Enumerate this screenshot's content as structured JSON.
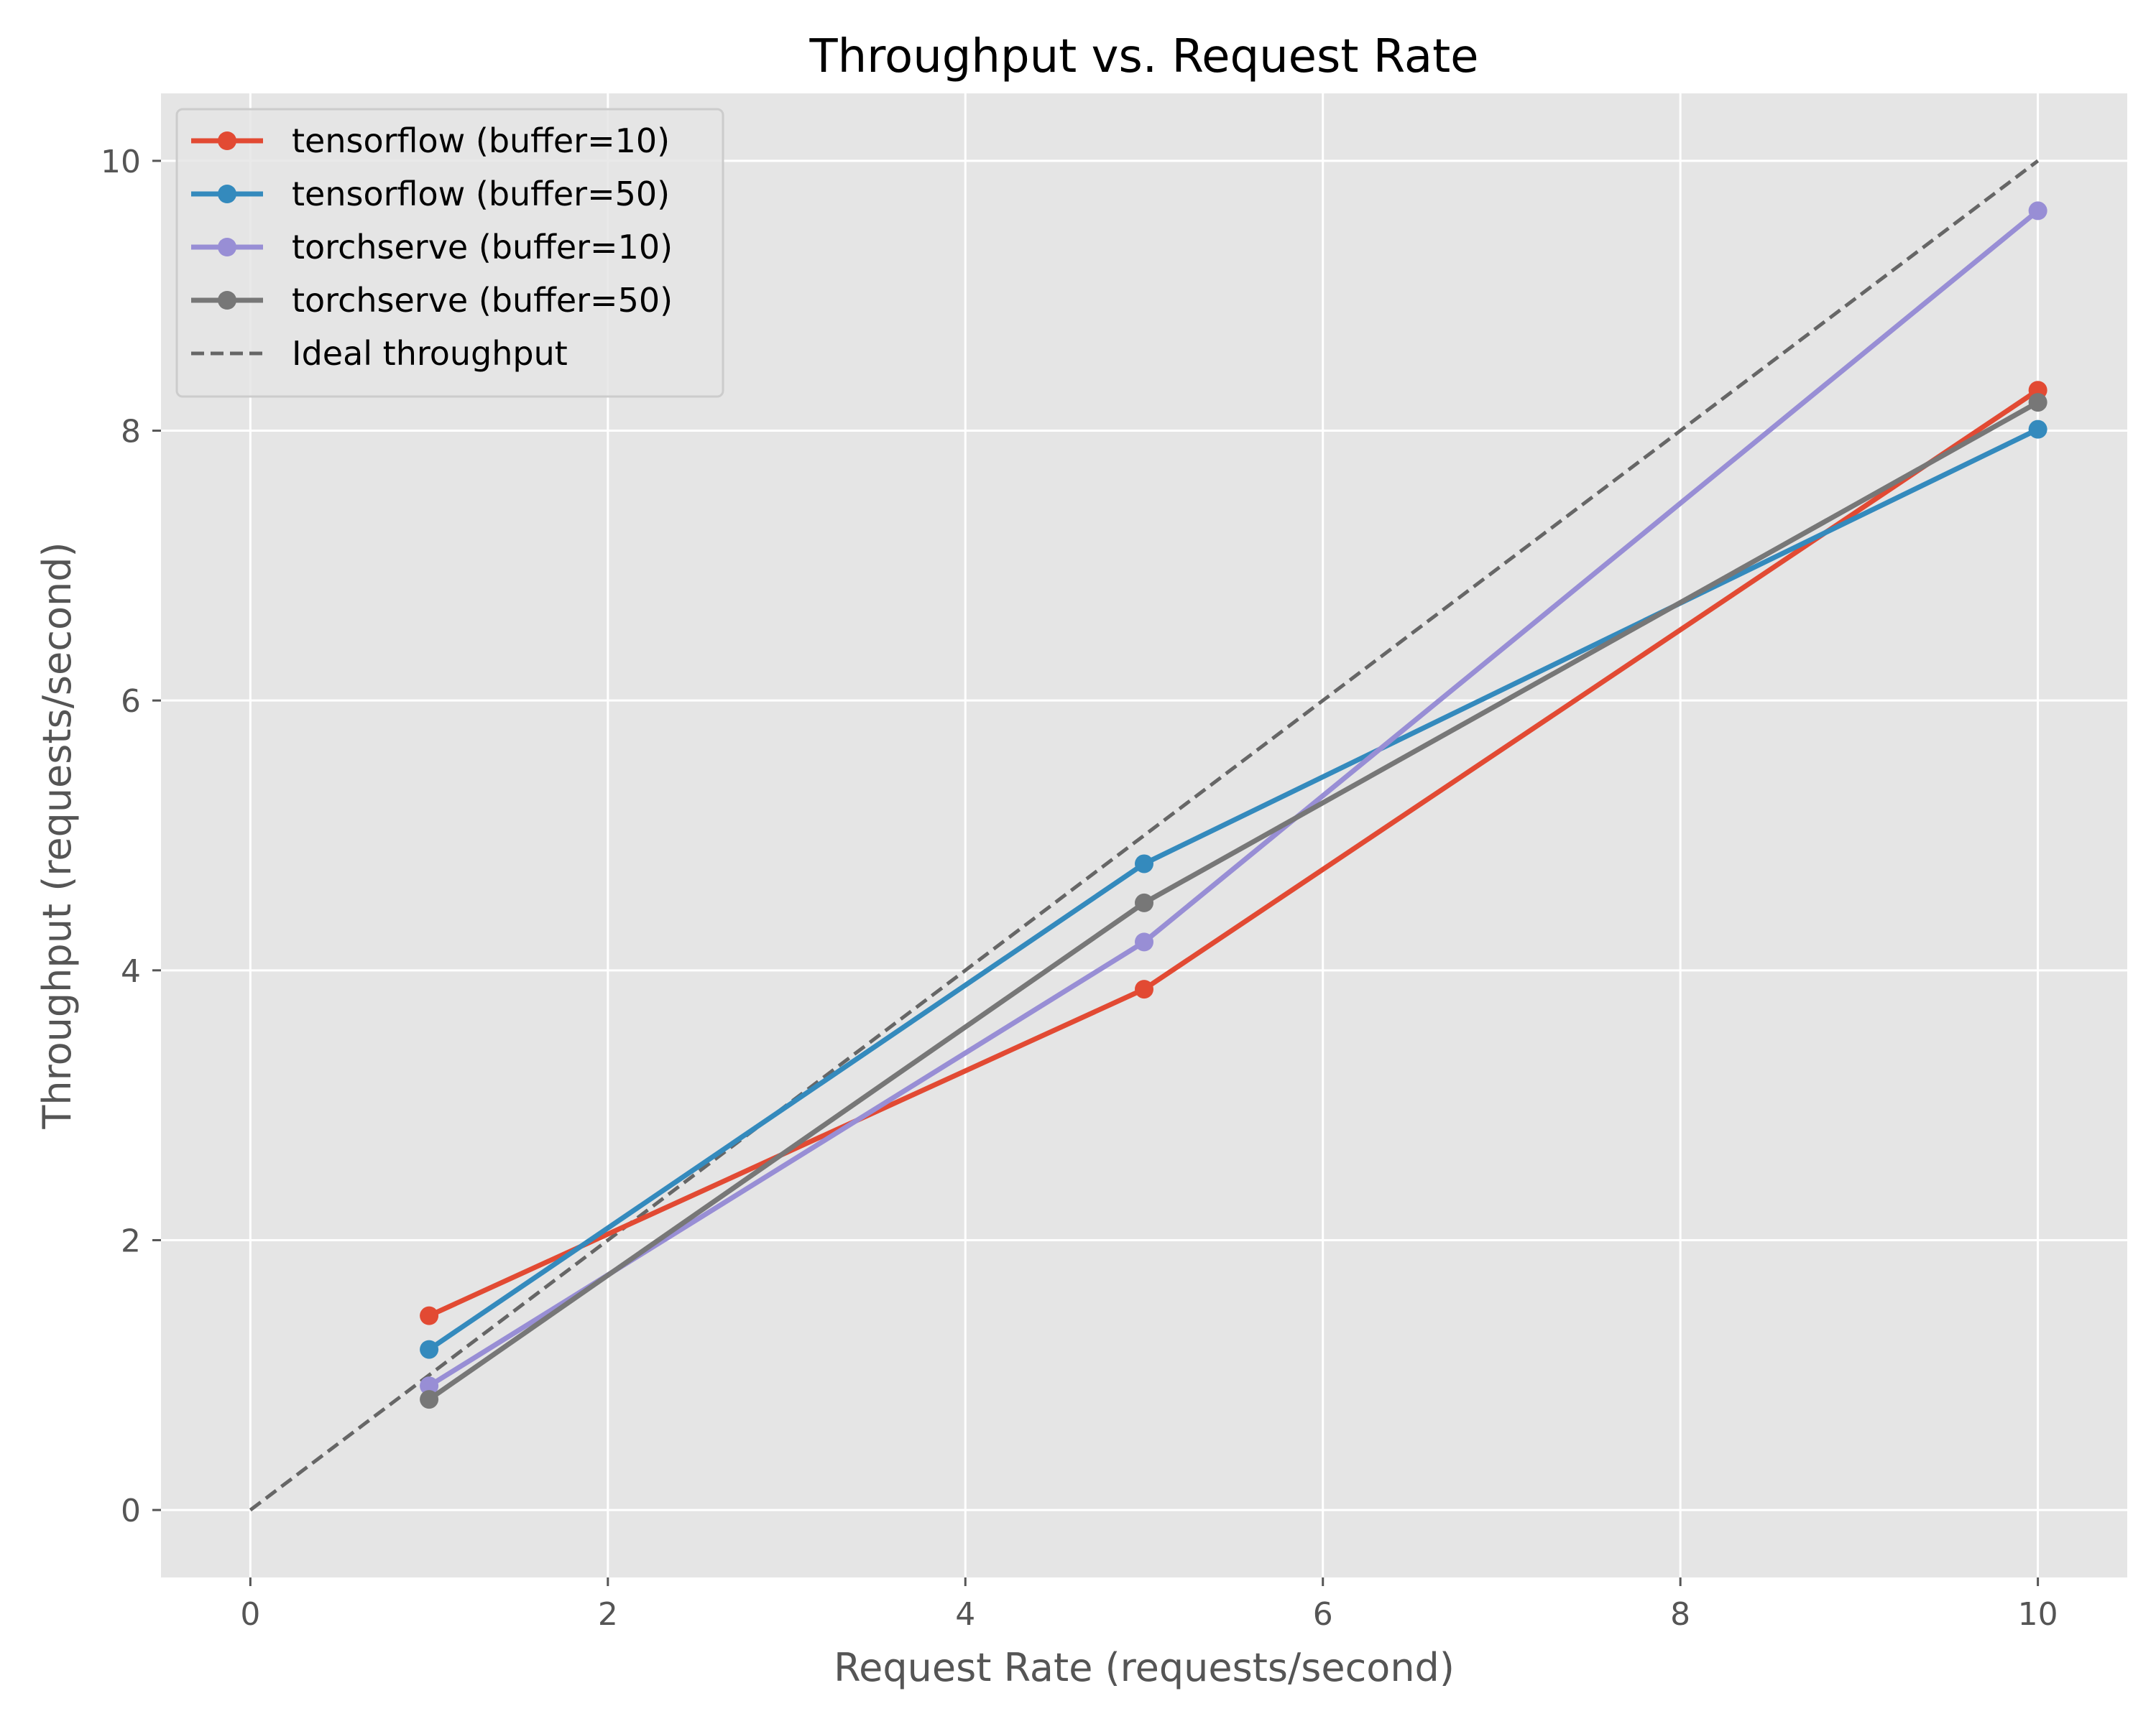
{
  "chart_data": {
    "type": "line",
    "title": "Throughput vs. Request Rate",
    "xlabel": "Request Rate (requests/second)",
    "ylabel": "Throughput (requests/second)",
    "xlim": [
      -0.5,
      10.5
    ],
    "ylim": [
      -0.5,
      10.5
    ],
    "xticks": [
      "0",
      "2",
      "4",
      "6",
      "8",
      "10"
    ],
    "yticks": [
      "0",
      "2",
      "4",
      "6",
      "8",
      "10"
    ],
    "grid": true,
    "legend_position": "upper-left",
    "x": [
      1,
      5,
      10
    ],
    "series": [
      {
        "name": "tensorflow (buffer=10)",
        "color": "#E24A33",
        "marker": "circle",
        "values": [
          1.44,
          3.86,
          8.3
        ]
      },
      {
        "name": "tensorflow (buffer=50)",
        "color": "#348ABD",
        "marker": "circle",
        "values": [
          1.19,
          4.79,
          8.01
        ]
      },
      {
        "name": "torchserve (buffer=10)",
        "color": "#988ED5",
        "marker": "circle",
        "values": [
          0.92,
          4.21,
          9.63
        ]
      },
      {
        "name": "torchserve (buffer=50)",
        "color": "#777777",
        "marker": "circle",
        "values": [
          0.82,
          4.5,
          8.21
        ]
      }
    ],
    "reference_line": {
      "name": "Ideal throughput",
      "style": "dashed",
      "color": "#666666",
      "x": [
        0,
        10
      ],
      "values": [
        0,
        10
      ]
    }
  },
  "colors": {
    "plot_background": "#E5E5E5",
    "grid": "#FFFFFF",
    "legend_frame": "#CCCCCC"
  }
}
